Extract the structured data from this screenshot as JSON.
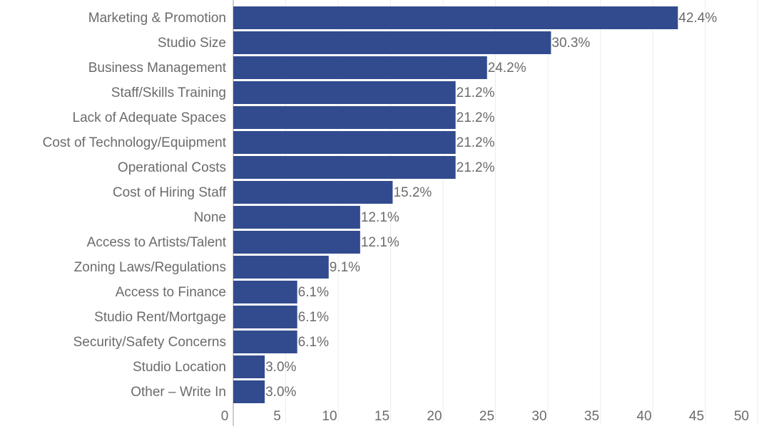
{
  "chart_data": {
    "type": "barh",
    "categories": [
      "Marketing & Promotion",
      "Studio Size",
      "Business Management",
      "Staff/Skills Training",
      "Lack of Adequate Spaces",
      "Cost of Technology/Equipment",
      "Operational Costs",
      "Cost of Hiring Staff",
      "None",
      "Access to Artists/Talent",
      "Zoning Laws/Regulations",
      "Access to Finance",
      "Studio Rent/Mortgage",
      "Security/Safety Concerns",
      "Studio Location",
      "Other – Write In"
    ],
    "values": [
      42.4,
      30.3,
      24.2,
      21.2,
      21.2,
      21.2,
      21.2,
      15.2,
      12.1,
      12.1,
      9.1,
      6.1,
      6.1,
      6.1,
      3.0,
      3.0
    ],
    "value_labels": [
      "42.4%",
      "30.3%",
      "24.2%",
      "21.2%",
      "21.2%",
      "21.2%",
      "21.2%",
      "15.2%",
      "12.1%",
      "12.1%",
      "9.1%",
      "6.1%",
      "6.1%",
      "6.1%",
      "3.0%",
      "3.0%"
    ],
    "color": "#324b8e",
    "xlim": [
      0,
      50
    ],
    "xticks": [
      0,
      5,
      10,
      15,
      20,
      25,
      30,
      35,
      40,
      45,
      50
    ],
    "grid": true
  }
}
